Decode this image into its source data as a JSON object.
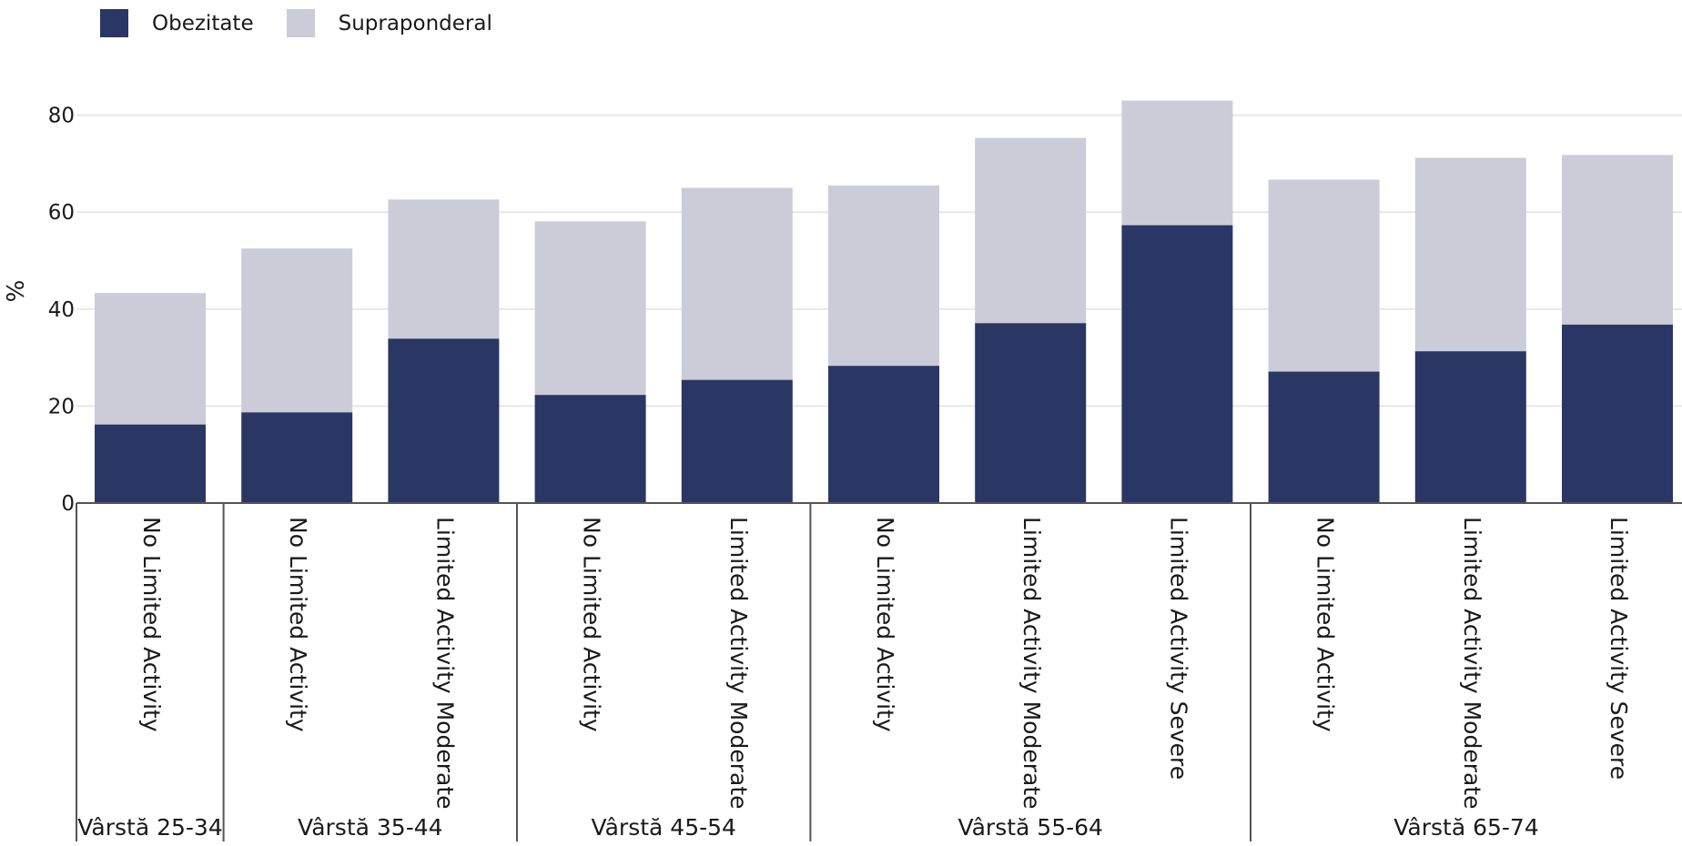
{
  "colors": {
    "obezitate": "#2a3764",
    "supraponderal": "#cbccd8",
    "grid": "#e7e7e7",
    "axis": "#555555",
    "text": "#1a1a1a"
  },
  "chart_data": {
    "type": "bar",
    "stacked": true,
    "ylabel": "%",
    "ylim": [
      0,
      90
    ],
    "yticks": [
      0,
      20,
      40,
      60,
      80
    ],
    "grid": true,
    "legend_position": "top-left",
    "series": [
      {
        "name": "Obezitate",
        "values": [
          16.2,
          18.7,
          33.9,
          22.3,
          25.4,
          28.3,
          37.1,
          57.3,
          27.1,
          31.3,
          36.8
        ]
      },
      {
        "name": "Supraponderal",
        "values": [
          27.1,
          33.8,
          28.7,
          35.8,
          39.6,
          37.2,
          38.2,
          25.7,
          39.6,
          39.9,
          35.0
        ]
      }
    ],
    "categories": [
      "No Limited Activity",
      "No Limited Activity",
      "Limited Activity Moderate",
      "No Limited Activity",
      "Limited Activity Moderate",
      "No Limited Activity",
      "Limited Activity Moderate",
      "Limited Activity Severe",
      "No Limited Activity",
      "Limited Activity Moderate",
      "Limited Activity Severe"
    ],
    "groups": [
      {
        "label": "Vârstă 25-34",
        "count": 1
      },
      {
        "label": "Vârstă 35-44",
        "count": 2
      },
      {
        "label": "Vârstă 45-54",
        "count": 2
      },
      {
        "label": "Vârstă 55-64",
        "count": 3
      },
      {
        "label": "Vârstă 65-74",
        "count": 3
      }
    ]
  }
}
